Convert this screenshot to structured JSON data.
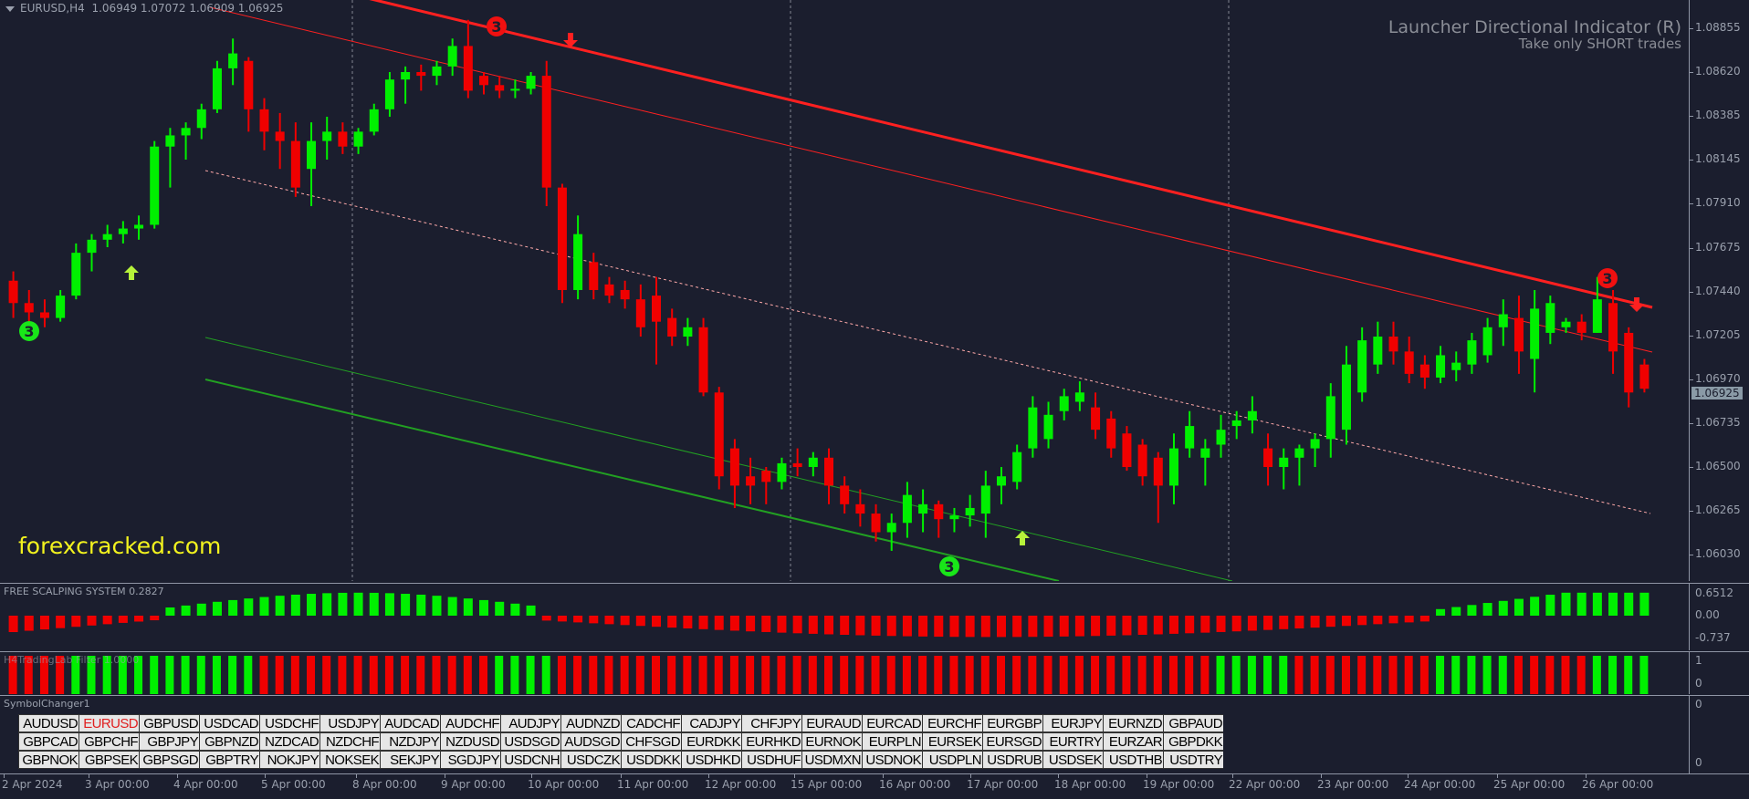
{
  "header": {
    "symbol": "EURUSD,H4",
    "ohlc": "1.06949 1.07072 1.06909 1.06925"
  },
  "launcher": {
    "title": "Launcher Directional Indicator (R)",
    "subtitle": "Take only SHORT trades"
  },
  "watermark": "forexcracked.com",
  "price_axis": {
    "labels": [
      "1.08855",
      "1.08620",
      "1.08385",
      "1.08145",
      "1.07910",
      "1.07675",
      "1.07440",
      "1.07205",
      "1.06970",
      "1.06735",
      "1.06500",
      "1.06265",
      "1.06030"
    ],
    "current_price": "1.06925"
  },
  "indicator1": {
    "label": "FREE SCALPING SYSTEM 0.2827",
    "axis": [
      "0.6512",
      "0.00",
      "-0.737"
    ]
  },
  "indicator2": {
    "label": "H4TradingLab Filter 1.0000",
    "axis": [
      "1",
      "0"
    ]
  },
  "symbol_changer": {
    "label": "SymbolChanger1",
    "axis": [
      "0",
      "0"
    ],
    "selected": "EURUSD",
    "rows": [
      [
        "AUDUSD",
        "EURUSD",
        "GBPUSD",
        "USDCAD",
        "USDCHF",
        "USDJPY",
        "AUDCAD",
        "AUDCHF",
        "AUDJPY",
        "AUDNZD",
        "CADCHF",
        "CADJPY",
        "CHFJPY",
        "EURAUD",
        "EURCAD",
        "EURCHF",
        "EURGBP",
        "EURJPY",
        "EURNZD",
        "GBPAUD"
      ],
      [
        "GBPCAD",
        "GBPCHF",
        "GBPJPY",
        "GBPNZD",
        "NZDCAD",
        "NZDCHF",
        "NZDJPY",
        "NZDUSD",
        "USDSGD",
        "AUDSGD",
        "CHFSGD",
        "EURDKK",
        "EURHKD",
        "EURNOK",
        "EURPLN",
        "EURSEK",
        "EURSGD",
        "EURTRY",
        "EURZAR",
        "GBPDKK"
      ],
      [
        "GBPNOK",
        "GBPSEK",
        "GBPSGD",
        "GBPTRY",
        "NOKJPY",
        "NOKSEK",
        "SEKJPY",
        "SGDJPY",
        "USDCNH",
        "USDCZK",
        "USDDKK",
        "USDHKD",
        "USDHUF",
        "USDMXN",
        "USDNOK",
        "USDPLN",
        "USDRUB",
        "USDSEK",
        "USDTHB",
        "USDTRY"
      ]
    ]
  },
  "time_axis": [
    "2 Apr 2024",
    "3 Apr 00:00",
    "4 Apr 00:00",
    "5 Apr 00:00",
    "8 Apr 00:00",
    "9 Apr 00:00",
    "10 Apr 00:00",
    "11 Apr 00:00",
    "12 Apr 00:00",
    "15 Apr 00:00",
    "16 Apr 00:00",
    "17 Apr 00:00",
    "18 Apr 00:00",
    "19 Apr 00:00",
    "22 Apr 00:00",
    "23 Apr 00:00",
    "24 Apr 00:00",
    "25 Apr 00:00",
    "26 Apr 00:00"
  ],
  "colors": {
    "bull": "#00f000",
    "bear": "#f00000",
    "background": "#1b1e2e",
    "upper_channel": "#ff2020",
    "lower_channel": "#22a022",
    "watermark": "#f2f21e"
  },
  "chart_data": {
    "type": "candlestick",
    "title": "EURUSD,H4",
    "ylim": [
      1.0595,
      1.09
    ],
    "candles_approx": [
      [
        1.075,
        1.0755,
        1.073,
        1.0738
      ],
      [
        1.0738,
        1.0745,
        1.0728,
        1.0733
      ],
      [
        1.0733,
        1.074,
        1.0725,
        1.073
      ],
      [
        1.073,
        1.0745,
        1.0728,
        1.0742
      ],
      [
        1.0742,
        1.077,
        1.074,
        1.0765
      ],
      [
        1.0765,
        1.0775,
        1.0755,
        1.0772
      ],
      [
        1.0772,
        1.078,
        1.0768,
        1.0775
      ],
      [
        1.0775,
        1.0782,
        1.077,
        1.0778
      ],
      [
        1.0778,
        1.0785,
        1.0772,
        1.078
      ],
      [
        1.078,
        1.0825,
        1.0778,
        1.0822
      ],
      [
        1.0822,
        1.0832,
        1.08,
        1.0828
      ],
      [
        1.0828,
        1.0835,
        1.0815,
        1.0832
      ],
      [
        1.0832,
        1.0845,
        1.0826,
        1.0842
      ],
      [
        1.0842,
        1.0868,
        1.084,
        1.0864
      ],
      [
        1.0864,
        1.088,
        1.0855,
        1.0872
      ],
      [
        1.0868,
        1.087,
        1.083,
        1.0842
      ],
      [
        1.0842,
        1.0848,
        1.082,
        1.083
      ],
      [
        1.083,
        1.084,
        1.081,
        1.0825
      ],
      [
        1.0825,
        1.0835,
        1.0795,
        1.08
      ],
      [
        1.081,
        1.0835,
        1.079,
        1.0825
      ],
      [
        1.0825,
        1.0838,
        1.0815,
        1.083
      ],
      [
        1.083,
        1.0835,
        1.0818,
        1.0822
      ],
      [
        1.0822,
        1.0832,
        1.0818,
        1.083
      ],
      [
        1.083,
        1.0845,
        1.0828,
        1.0842
      ],
      [
        1.0842,
        1.0862,
        1.0838,
        1.0858
      ],
      [
        1.0858,
        1.0865,
        1.0845,
        1.0862
      ],
      [
        1.0862,
        1.0866,
        1.0852,
        1.086
      ],
      [
        1.086,
        1.0868,
        1.0855,
        1.0865
      ],
      [
        1.0865,
        1.088,
        1.086,
        1.0876
      ],
      [
        1.0876,
        1.089,
        1.0848,
        1.0852
      ],
      [
        1.086,
        1.0862,
        1.085,
        1.0855
      ],
      [
        1.0855,
        1.086,
        1.0848,
        1.0852
      ],
      [
        1.0852,
        1.0858,
        1.0848,
        1.0853
      ],
      [
        1.0853,
        1.0862,
        1.085,
        1.086
      ],
      [
        1.086,
        1.0868,
        1.079,
        1.08
      ],
      [
        1.08,
        1.0802,
        1.0738,
        1.0745
      ],
      [
        1.0745,
        1.0785,
        1.074,
        1.0775
      ],
      [
        1.076,
        1.0765,
        1.074,
        1.0745
      ],
      [
        1.0748,
        1.0752,
        1.0738,
        1.0742
      ],
      [
        1.0745,
        1.075,
        1.0735,
        1.074
      ],
      [
        1.074,
        1.0748,
        1.072,
        1.0725
      ],
      [
        1.0742,
        1.0752,
        1.0705,
        1.0728
      ],
      [
        1.073,
        1.0735,
        1.0715,
        1.072
      ],
      [
        1.072,
        1.073,
        1.0715,
        1.0725
      ],
      [
        1.0725,
        1.073,
        1.0688,
        1.069
      ],
      [
        1.069,
        1.0693,
        1.0638,
        1.0645
      ],
      [
        1.066,
        1.0665,
        1.0628,
        1.064
      ],
      [
        1.0645,
        1.0655,
        1.063,
        1.064
      ],
      [
        1.0648,
        1.065,
        1.063,
        1.0642
      ],
      [
        1.0642,
        1.0655,
        1.0638,
        1.0652
      ],
      [
        1.0652,
        1.066,
        1.0645,
        1.065
      ],
      [
        1.065,
        1.0658,
        1.0645,
        1.0655
      ],
      [
        1.0655,
        1.066,
        1.063,
        1.064
      ],
      [
        1.064,
        1.0645,
        1.0625,
        1.063
      ],
      [
        1.063,
        1.0638,
        1.0618,
        1.0625
      ],
      [
        1.0625,
        1.063,
        1.061,
        1.0615
      ],
      [
        1.0615,
        1.0625,
        1.0605,
        1.062
      ],
      [
        1.062,
        1.0642,
        1.0612,
        1.0635
      ],
      [
        1.0625,
        1.0638,
        1.0615,
        1.063
      ],
      [
        1.063,
        1.0632,
        1.0612,
        1.0622
      ],
      [
        1.0622,
        1.0628,
        1.0615,
        1.0624
      ],
      [
        1.0624,
        1.0635,
        1.0618,
        1.0628
      ],
      [
        1.0625,
        1.0648,
        1.0612,
        1.064
      ],
      [
        1.064,
        1.065,
        1.063,
        1.0645
      ],
      [
        1.0642,
        1.0662,
        1.0638,
        1.0658
      ],
      [
        1.066,
        1.0688,
        1.0655,
        1.0682
      ],
      [
        1.0665,
        1.0685,
        1.066,
        1.0678
      ],
      [
        1.068,
        1.0692,
        1.0675,
        1.0688
      ],
      [
        1.0685,
        1.0696,
        1.068,
        1.069
      ],
      [
        1.0682,
        1.069,
        1.0665,
        1.067
      ],
      [
        1.0676,
        1.068,
        1.0655,
        1.066
      ],
      [
        1.0668,
        1.0672,
        1.0648,
        1.065
      ],
      [
        1.0662,
        1.0665,
        1.064,
        1.0645
      ],
      [
        1.0655,
        1.0658,
        1.062,
        1.064
      ],
      [
        1.064,
        1.0668,
        1.063,
        1.066
      ],
      [
        1.066,
        1.068,
        1.0655,
        1.0672
      ],
      [
        1.0655,
        1.0665,
        1.064,
        1.066
      ],
      [
        1.0662,
        1.0678,
        1.0655,
        1.067
      ],
      [
        1.0672,
        1.068,
        1.0665,
        1.0675
      ],
      [
        1.0675,
        1.0688,
        1.0668,
        1.068
      ],
      [
        1.066,
        1.0668,
        1.064,
        1.065
      ],
      [
        1.065,
        1.066,
        1.0638,
        1.0655
      ],
      [
        1.0655,
        1.0662,
        1.064,
        1.066
      ],
      [
        1.066,
        1.0668,
        1.065,
        1.0665
      ],
      [
        1.0665,
        1.0695,
        1.0655,
        1.0688
      ],
      [
        1.067,
        1.0715,
        1.0662,
        1.0705
      ],
      [
        1.069,
        1.0725,
        1.0685,
        1.0718
      ],
      [
        1.0705,
        1.0728,
        1.07,
        1.072
      ],
      [
        1.072,
        1.0728,
        1.0705,
        1.0712
      ],
      [
        1.0712,
        1.072,
        1.0695,
        1.07
      ],
      [
        1.0705,
        1.071,
        1.0692,
        1.0698
      ],
      [
        1.0698,
        1.0715,
        1.0695,
        1.071
      ],
      [
        1.0702,
        1.0712,
        1.0696,
        1.0706
      ],
      [
        1.0705,
        1.0722,
        1.07,
        1.0718
      ],
      [
        1.071,
        1.073,
        1.0706,
        1.0725
      ],
      [
        1.0725,
        1.074,
        1.0715,
        1.0732
      ],
      [
        1.073,
        1.0742,
        1.07,
        1.0712
      ],
      [
        1.0708,
        1.0745,
        1.069,
        1.0735
      ],
      [
        1.0722,
        1.0742,
        1.0716,
        1.0738
      ],
      [
        1.0725,
        1.073,
        1.0722,
        1.0728
      ],
      [
        1.0728,
        1.0732,
        1.0718,
        1.0722
      ],
      [
        1.0722,
        1.0752,
        1.0722,
        1.074
      ],
      [
        1.0738,
        1.0745,
        1.07,
        1.0712
      ],
      [
        1.0722,
        1.0725,
        1.0682,
        1.069
      ],
      [
        1.0705,
        1.0708,
        1.069,
        1.0692
      ]
    ],
    "annotations": [
      "3 (green circle, low 2 Apr)",
      "up arrow 3 Apr",
      "3 (red circle, high 9 Apr)",
      "down arrow 10 Apr",
      "3 (green circle, low 16 Apr)",
      "up arrow 17 Apr",
      "3 (red circle, high 26 Apr)",
      "down arrow 26 Apr"
    ],
    "lines": [
      "upper descending red channel",
      "mid red channel",
      "dotted pink midline",
      "two green lower channel lines"
    ]
  }
}
